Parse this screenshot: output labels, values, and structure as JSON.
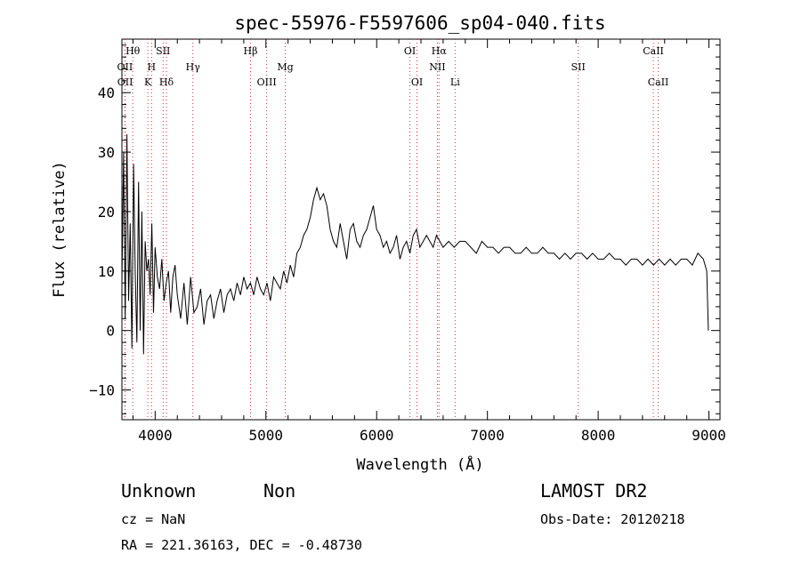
{
  "chart_data": {
    "type": "line",
    "title": "spec-55976-F5597606_sp04-040.fits",
    "xlabel": "Wavelength (Å)",
    "ylabel": "Flux (relative)",
    "xlim": [
      3700,
      9100
    ],
    "ylim": [
      -15,
      49
    ],
    "xticks": [
      4000,
      5000,
      6000,
      7000,
      8000,
      9000
    ],
    "yticks": [
      -10,
      0,
      10,
      20,
      30,
      40
    ],
    "grid": false,
    "line_color": "#000000",
    "marker_color": "#cc3333",
    "lines": [
      {
        "label": "Hθ",
        "x": 3798,
        "row": 1
      },
      {
        "label": "OII",
        "x": 3727,
        "row": 2
      },
      {
        "label": "OII",
        "x": 3729,
        "row": 3
      },
      {
        "label": "SII",
        "x": 4072,
        "row": 1
      },
      {
        "label": "H",
        "x": 3968,
        "row": 2
      },
      {
        "label": "K",
        "x": 3934,
        "row": 3
      },
      {
        "label": "Hδ",
        "x": 4102,
        "row": 3
      },
      {
        "label": "Hγ",
        "x": 4341,
        "row": 2
      },
      {
        "label": "Hβ",
        "x": 4861,
        "row": 1
      },
      {
        "label": "Mg",
        "x": 5175,
        "row": 2
      },
      {
        "label": "OIII",
        "x": 5007,
        "row": 3
      },
      {
        "label": "OI",
        "x": 6300,
        "row": 1
      },
      {
        "label": "Hα",
        "x": 6563,
        "row": 1
      },
      {
        "label": "NII",
        "x": 6548,
        "row": 2
      },
      {
        "label": "OI",
        "x": 6364,
        "row": 3
      },
      {
        "label": "Li",
        "x": 6708,
        "row": 3
      },
      {
        "label": "SII",
        "x": 7820,
        "row": 2
      },
      {
        "label": "CaII",
        "x": 8498,
        "row": 1
      },
      {
        "label": "CaII",
        "x": 8542,
        "row": 3
      }
    ],
    "series": [
      {
        "x": [
          3700,
          3715,
          3730,
          3745,
          3760,
          3775,
          3790,
          3805,
          3820,
          3835,
          3850,
          3865,
          3880,
          3895,
          3910,
          3925,
          3940,
          3955,
          3970,
          3985,
          4000,
          4020,
          4040,
          4060,
          4080,
          4100,
          4120,
          4140,
          4160,
          4180,
          4200,
          4230,
          4260,
          4290,
          4320,
          4350,
          4380,
          4410,
          4440,
          4470,
          4500,
          4530,
          4560,
          4590,
          4620,
          4650,
          4680,
          4710,
          4740,
          4770,
          4800,
          4830,
          4860,
          4890,
          4920,
          4950,
          4980,
          5010,
          5040,
          5070,
          5100,
          5130,
          5160,
          5190,
          5220,
          5250,
          5280,
          5310,
          5340,
          5370,
          5400,
          5430,
          5460,
          5490,
          5520,
          5550,
          5580,
          5610,
          5640,
          5670,
          5700,
          5730,
          5760,
          5790,
          5820,
          5850,
          5880,
          5910,
          5940,
          5970,
          6000,
          6030,
          6060,
          6090,
          6120,
          6150,
          6180,
          6210,
          6240,
          6270,
          6300,
          6330,
          6360,
          6390,
          6420,
          6450,
          6480,
          6510,
          6540,
          6570,
          6600,
          6650,
          6700,
          6750,
          6800,
          6850,
          6900,
          6950,
          7000,
          7050,
          7100,
          7150,
          7200,
          7250,
          7300,
          7350,
          7400,
          7450,
          7500,
          7550,
          7600,
          7650,
          7700,
          7750,
          7800,
          7850,
          7900,
          7950,
          8000,
          8050,
          8100,
          8150,
          8200,
          8250,
          8300,
          8350,
          8400,
          8450,
          8500,
          8550,
          8600,
          8650,
          8700,
          8750,
          8800,
          8850,
          8900,
          8950,
          8980,
          8995
        ],
        "y": [
          8,
          30,
          2,
          33,
          5,
          18,
          -3,
          28,
          10,
          -2,
          25,
          0,
          20,
          -4,
          15,
          10,
          12,
          6,
          18,
          3,
          14,
          9,
          7,
          12,
          5,
          8,
          10,
          3,
          9,
          11,
          6,
          2,
          8,
          1,
          9,
          3,
          4,
          7,
          1,
          5,
          6,
          2,
          5,
          7,
          3,
          6,
          7,
          5,
          8,
          6,
          9,
          7,
          8,
          6,
          9,
          7,
          6,
          8,
          5,
          9,
          8,
          7,
          10,
          8,
          11,
          9,
          13,
          14,
          16,
          17,
          19,
          22,
          24,
          22,
          23,
          21,
          17,
          15,
          14,
          18,
          15,
          12,
          17,
          18,
          15,
          14,
          16,
          17,
          19,
          21,
          17,
          16,
          14,
          15,
          13,
          14,
          16,
          12,
          14,
          15,
          13,
          16,
          17,
          14,
          15,
          16,
          15,
          14,
          16,
          15,
          14,
          15,
          14,
          15,
          15,
          14,
          13,
          15,
          14,
          14,
          13,
          14,
          14,
          13,
          13,
          14,
          13,
          13,
          14,
          13,
          13,
          12,
          13,
          12,
          13,
          13,
          12,
          13,
          12,
          12,
          13,
          12,
          12,
          11,
          12,
          12,
          11,
          12,
          11,
          12,
          11,
          12,
          11,
          12,
          12,
          11,
          13,
          12,
          10,
          0
        ]
      }
    ]
  },
  "info": {
    "class": "Unknown",
    "subclass": "Non",
    "survey": "LAMOST DR2",
    "cz": "cz = NaN",
    "obs_date": "Obs-Date: 20120218",
    "radec": "RA = 221.36163, DEC =  -0.48730"
  }
}
